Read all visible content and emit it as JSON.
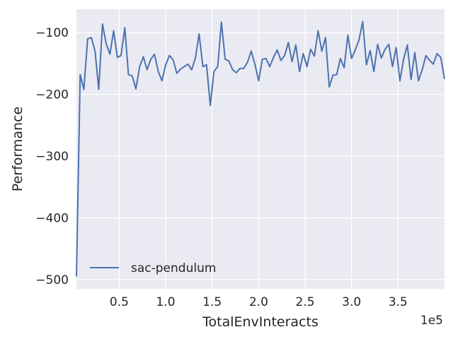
{
  "chart_data": {
    "type": "line",
    "xlabel": "TotalEnvInteracts",
    "ylabel": "Performance",
    "x_scale_label": "1e5",
    "xlim": [
      4000,
      400000
    ],
    "ylim": [
      -515,
      -62
    ],
    "x_ticks": [
      50000,
      100000,
      150000,
      200000,
      250000,
      300000,
      350000
    ],
    "x_tick_labels": [
      "0.5",
      "1.0",
      "1.5",
      "2.0",
      "2.5",
      "3.0",
      "3.5"
    ],
    "y_ticks": [
      -500,
      -400,
      -300,
      -200,
      -100
    ],
    "y_tick_labels": [
      "−500",
      "−400",
      "−300",
      "−200",
      "−100"
    ],
    "grid": true,
    "legend_position": "lower-left",
    "colors": {
      "plot_background": "#eaeaf2",
      "grid": "#ffffff",
      "series": "#4c72b0"
    },
    "series": [
      {
        "name": "sac-pendulum",
        "x": [
          4000,
          8000,
          12000,
          16000,
          20000,
          24000,
          28000,
          32000,
          36000,
          40000,
          44000,
          48000,
          52000,
          56000,
          60000,
          64000,
          68000,
          72000,
          76000,
          80000,
          84000,
          88000,
          92000,
          96000,
          100000,
          104000,
          108000,
          112000,
          116000,
          120000,
          124000,
          128000,
          132000,
          136000,
          140000,
          144000,
          148000,
          152000,
          156000,
          160000,
          164000,
          168000,
          172000,
          176000,
          180000,
          184000,
          188000,
          192000,
          196000,
          200000,
          204000,
          208000,
          212000,
          216000,
          220000,
          224000,
          228000,
          232000,
          236000,
          240000,
          244000,
          248000,
          252000,
          256000,
          260000,
          264000,
          268000,
          272000,
          276000,
          280000,
          284000,
          288000,
          292000,
          296000,
          300000,
          304000,
          308000,
          312000,
          316000,
          320000,
          324000,
          328000,
          332000,
          336000,
          340000,
          344000,
          348000,
          352000,
          356000,
          360000,
          364000,
          368000,
          372000,
          376000,
          380000,
          384000,
          388000,
          392000,
          396000,
          400000
        ],
        "y": [
          -495,
          -168,
          -192,
          -110,
          -108,
          -130,
          -192,
          -86,
          -118,
          -135,
          -97,
          -140,
          -137,
          -92,
          -168,
          -170,
          -191,
          -155,
          -139,
          -160,
          -143,
          -135,
          -163,
          -178,
          -152,
          -137,
          -144,
          -166,
          -159,
          -155,
          -151,
          -160,
          -141,
          -102,
          -155,
          -152,
          -218,
          -163,
          -155,
          -83,
          -143,
          -146,
          -160,
          -165,
          -158,
          -158,
          -148,
          -130,
          -151,
          -178,
          -143,
          -142,
          -155,
          -140,
          -128,
          -145,
          -137,
          -116,
          -147,
          -120,
          -163,
          -134,
          -155,
          -127,
          -138,
          -97,
          -130,
          -108,
          -188,
          -169,
          -168,
          -142,
          -157,
          -104,
          -142,
          -128,
          -112,
          -82,
          -152,
          -129,
          -163,
          -119,
          -141,
          -127,
          -119,
          -155,
          -124,
          -178,
          -143,
          -120,
          -176,
          -132,
          -178,
          -160,
          -137,
          -145,
          -151,
          -134,
          -140,
          -175
        ]
      }
    ]
  }
}
